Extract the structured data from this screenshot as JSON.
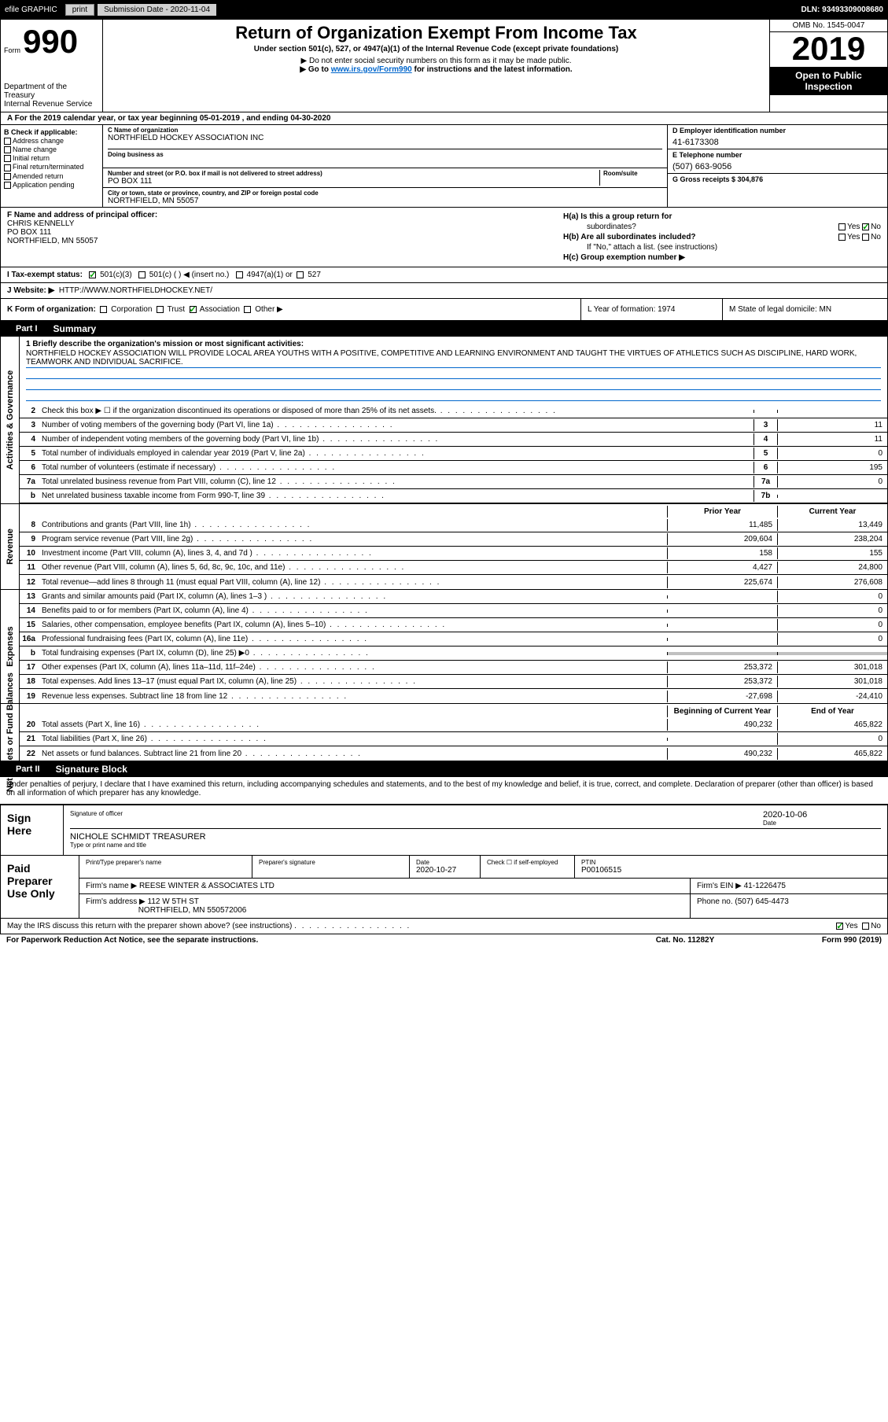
{
  "top": {
    "efile": "efile GRAPHIC",
    "print": "print",
    "sub_date": "Submission Date - 2020-11-04",
    "dln": "DLN: 93493309008680"
  },
  "header": {
    "form_label": "Form",
    "form_num": "990",
    "title": "Return of Organization Exempt From Income Tax",
    "sub": "Under section 501(c), 527, or 4947(a)(1) of the Internal Revenue Code (except private foundations)",
    "note1": "▶ Do not enter social security numbers on this form as it may be made public.",
    "note2_pre": "▶ Go to ",
    "note2_link": "www.irs.gov/Form990",
    "note2_post": " for instructions and the latest information.",
    "dept": "Department of the Treasury\nInternal Revenue Service",
    "omb": "OMB No. 1545-0047",
    "year": "2019",
    "inspection": "Open to Public Inspection"
  },
  "line_a": "A For the 2019 calendar year, or tax year beginning 05-01-2019   , and ending 04-30-2020",
  "col_b": {
    "label": "B Check if applicable:",
    "items": [
      "Address change",
      "Name change",
      "Initial return",
      "Final return/terminated",
      "Amended return",
      "Application pending"
    ]
  },
  "col_c": {
    "name_label": "C Name of organization",
    "name": "NORTHFIELD HOCKEY ASSOCIATION INC",
    "dba_label": "Doing business as",
    "addr_label": "Number and street (or P.O. box if mail is not delivered to street address)",
    "room_label": "Room/suite",
    "addr": "PO BOX 111",
    "city_label": "City or town, state or province, country, and ZIP or foreign postal code",
    "city": "NORTHFIELD, MN  55057"
  },
  "col_d": {
    "ein_label": "D Employer identification number",
    "ein": "41-6173308",
    "tel_label": "E Telephone number",
    "tel": "(507) 663-9056",
    "gross_label": "G Gross receipts $ 304,876"
  },
  "officer": {
    "label": "F  Name and address of principal officer:",
    "name": "CHRIS KENNELLY",
    "addr1": "PO BOX 111",
    "addr2": "NORTHFIELD, MN  55057"
  },
  "h": {
    "ha": "H(a)  Is this a group return for",
    "ha2": "subordinates?",
    "hb": "H(b)  Are all subordinates included?",
    "hb_note": "If \"No,\" attach a list. (see instructions)",
    "hc": "H(c)  Group exemption number ▶"
  },
  "tax_status": {
    "label": "I  Tax-exempt status:",
    "opt1": "501(c)(3)",
    "opt2": "501(c) (  ) ◀ (insert no.)",
    "opt3": "4947(a)(1) or",
    "opt4": "527"
  },
  "website": {
    "label": "J  Website: ▶",
    "val": "HTTP://WWW.NORTHFIELDHOCKEY.NET/"
  },
  "k": {
    "label": "K Form of organization:",
    "opts": [
      "Corporation",
      "Trust",
      "Association",
      "Other ▶"
    ],
    "l": "L Year of formation: 1974",
    "m": "M State of legal domicile: MN"
  },
  "part1": {
    "num": "Part I",
    "title": "Summary",
    "mission_label": "1  Briefly describe the organization's mission or most significant activities:",
    "mission": "NORTHFIELD HOCKEY ASSOCIATION WILL PROVIDE LOCAL AREA YOUTHS WITH A POSITIVE, COMPETITIVE AND LEARNING ENVIRONMENT AND TAUGHT THE VIRTUES OF ATHLETICS SUCH AS DISCIPLINE, HARD WORK, TEAMWORK AND INDIVIDUAL SACRIFICE."
  },
  "gov_lines": [
    {
      "n": "2",
      "t": "Check this box ▶ ☐  if the organization discontinued its operations or disposed of more than 25% of its net assets.",
      "box": "",
      "v": ""
    },
    {
      "n": "3",
      "t": "Number of voting members of the governing body (Part VI, line 1a)",
      "box": "3",
      "v": "11"
    },
    {
      "n": "4",
      "t": "Number of independent voting members of the governing body (Part VI, line 1b)",
      "box": "4",
      "v": "11"
    },
    {
      "n": "5",
      "t": "Total number of individuals employed in calendar year 2019 (Part V, line 2a)",
      "box": "5",
      "v": "0"
    },
    {
      "n": "6",
      "t": "Total number of volunteers (estimate if necessary)",
      "box": "6",
      "v": "195"
    },
    {
      "n": "7a",
      "t": "Total unrelated business revenue from Part VIII, column (C), line 12",
      "box": "7a",
      "v": "0"
    },
    {
      "n": "b",
      "t": "Net unrelated business taxable income from Form 990-T, line 39",
      "box": "7b",
      "v": ""
    }
  ],
  "col_hdrs": {
    "py": "Prior Year",
    "cy": "Current Year"
  },
  "rev_lines": [
    {
      "n": "8",
      "t": "Contributions and grants (Part VIII, line 1h)",
      "py": "11,485",
      "cy": "13,449"
    },
    {
      "n": "9",
      "t": "Program service revenue (Part VIII, line 2g)",
      "py": "209,604",
      "cy": "238,204"
    },
    {
      "n": "10",
      "t": "Investment income (Part VIII, column (A), lines 3, 4, and 7d )",
      "py": "158",
      "cy": "155"
    },
    {
      "n": "11",
      "t": "Other revenue (Part VIII, column (A), lines 5, 6d, 8c, 9c, 10c, and 11e)",
      "py": "4,427",
      "cy": "24,800"
    },
    {
      "n": "12",
      "t": "Total revenue—add lines 8 through 11 (must equal Part VIII, column (A), line 12)",
      "py": "225,674",
      "cy": "276,608"
    }
  ],
  "exp_lines": [
    {
      "n": "13",
      "t": "Grants and similar amounts paid (Part IX, column (A), lines 1–3 )",
      "py": "",
      "cy": "0"
    },
    {
      "n": "14",
      "t": "Benefits paid to or for members (Part IX, column (A), line 4)",
      "py": "",
      "cy": "0"
    },
    {
      "n": "15",
      "t": "Salaries, other compensation, employee benefits (Part IX, column (A), lines 5–10)",
      "py": "",
      "cy": "0"
    },
    {
      "n": "16a",
      "t": "Professional fundraising fees (Part IX, column (A), line 11e)",
      "py": "",
      "cy": "0"
    },
    {
      "n": "b",
      "t": "Total fundraising expenses (Part IX, column (D), line 25) ▶0",
      "py": "shaded",
      "cy": "shaded"
    },
    {
      "n": "17",
      "t": "Other expenses (Part IX, column (A), lines 11a–11d, 11f–24e)",
      "py": "253,372",
      "cy": "301,018"
    },
    {
      "n": "18",
      "t": "Total expenses. Add lines 13–17 (must equal Part IX, column (A), line 25)",
      "py": "253,372",
      "cy": "301,018"
    },
    {
      "n": "19",
      "t": "Revenue less expenses. Subtract line 18 from line 12",
      "py": "-27,698",
      "cy": "-24,410"
    }
  ],
  "na_hdrs": {
    "by": "Beginning of Current Year",
    "ey": "End of Year"
  },
  "na_lines": [
    {
      "n": "20",
      "t": "Total assets (Part X, line 16)",
      "py": "490,232",
      "cy": "465,822"
    },
    {
      "n": "21",
      "t": "Total liabilities (Part X, line 26)",
      "py": "",
      "cy": "0"
    },
    {
      "n": "22",
      "t": "Net assets or fund balances. Subtract line 21 from line 20",
      "py": "490,232",
      "cy": "465,822"
    }
  ],
  "part2": {
    "num": "Part II",
    "title": "Signature Block"
  },
  "sig": {
    "intro": "Under penalties of perjury, I declare that I have examined this return, including accompanying schedules and statements, and to the best of my knowledge and belief, it is true, correct, and complete. Declaration of preparer (other than officer) is based on all information of which preparer has any knowledge.",
    "sign_here": "Sign Here",
    "sig_label": "Signature of officer",
    "date": "2020-10-06",
    "date_label": "Date",
    "name": "NICHOLE SCHMIDT TREASURER",
    "name_label": "Type or print name and title"
  },
  "prep": {
    "label": "Paid Preparer Use Only",
    "h1": "Print/Type preparer's name",
    "h2": "Preparer's signature",
    "h3": "Date",
    "date": "2020-10-27",
    "h4": "Check ☐ if self-employed",
    "h5": "PTIN",
    "ptin": "P00106515",
    "firm_label": "Firm's name    ▶",
    "firm": "REESE WINTER & ASSOCIATES LTD",
    "ein_label": "Firm's EIN ▶",
    "ein": "41-1226475",
    "addr_label": "Firm's address ▶",
    "addr1": "112 W 5TH ST",
    "addr2": "NORTHFIELD, MN  550572006",
    "phone_label": "Phone no.",
    "phone": "(507) 645-4473"
  },
  "discuss": "May the IRS discuss this return with the preparer shown above? (see instructions)",
  "footer": {
    "left": "For Paperwork Reduction Act Notice, see the separate instructions.",
    "mid": "Cat. No. 11282Y",
    "right": "Form 990 (2019)"
  },
  "vert_labels": {
    "gov": "Activities & Governance",
    "rev": "Revenue",
    "exp": "Expenses",
    "na": "Net Assets or Fund Balances"
  }
}
